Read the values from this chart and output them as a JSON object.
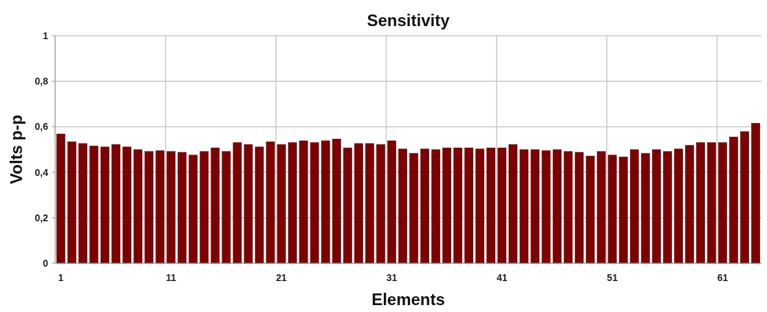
{
  "chart_data": {
    "type": "bar",
    "title": "Sensitivity",
    "xlabel": "Elements",
    "ylabel": "Volts p-p",
    "categories": [
      "1",
      null,
      null,
      null,
      null,
      null,
      null,
      null,
      null,
      null,
      "11",
      null,
      null,
      null,
      null,
      null,
      null,
      null,
      null,
      null,
      "21",
      null,
      null,
      null,
      null,
      null,
      null,
      null,
      null,
      null,
      "31",
      null,
      null,
      null,
      null,
      null,
      null,
      null,
      null,
      null,
      "41",
      null,
      null,
      null,
      null,
      null,
      null,
      null,
      null,
      null,
      "51",
      null,
      null,
      null,
      null,
      null,
      null,
      null,
      null,
      null,
      "61",
      null,
      null,
      null
    ],
    "values": [
      0.568,
      0.534,
      0.526,
      0.515,
      0.511,
      0.522,
      0.511,
      0.499,
      0.491,
      0.495,
      0.491,
      0.487,
      0.475,
      0.491,
      0.507,
      0.491,
      0.53,
      0.522,
      0.511,
      0.534,
      0.522,
      0.53,
      0.538,
      0.53,
      0.538,
      0.546,
      0.507,
      0.526,
      0.526,
      0.522,
      0.538,
      0.502,
      0.483,
      0.502,
      0.499,
      0.507,
      0.507,
      0.507,
      0.502,
      0.507,
      0.507,
      0.522,
      0.499,
      0.499,
      0.495,
      0.499,
      0.491,
      0.487,
      0.471,
      0.491,
      0.475,
      0.467,
      0.499,
      0.483,
      0.499,
      0.491,
      0.502,
      0.518,
      0.53,
      0.53,
      0.53,
      0.555,
      0.578,
      0.615
    ],
    "color": "#7f0000",
    "ylim": [
      0,
      1
    ],
    "yticks": [
      0,
      {
        "value": 0.2,
        "label": "0,2"
      },
      {
        "value": 0.4,
        "label": "0,4"
      },
      {
        "value": 0.6,
        "label": "0,6"
      },
      {
        "value": 0.8,
        "label": "0,8"
      },
      1
    ],
    "grid": true
  }
}
